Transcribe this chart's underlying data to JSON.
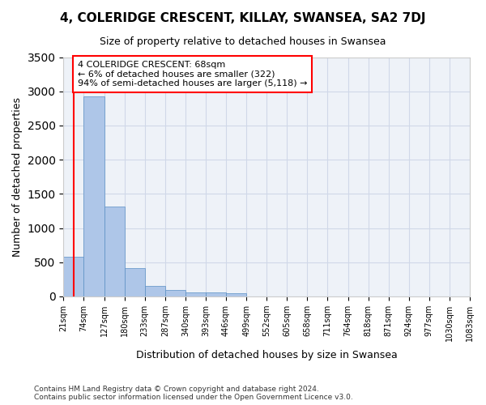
{
  "title": "4, COLERIDGE CRESCENT, KILLAY, SWANSEA, SA2 7DJ",
  "subtitle": "Size of property relative to detached houses in Swansea",
  "xlabel": "Distribution of detached houses by size in Swansea",
  "ylabel": "Number of detached properties",
  "bar_values": [
    580,
    2930,
    1320,
    410,
    155,
    90,
    60,
    55,
    45,
    0,
    0,
    0,
    0,
    0,
    0,
    0,
    0,
    0,
    0,
    0
  ],
  "bar_color": "#aec6e8",
  "bar_edge_color": "#5a8fc4",
  "grid_color": "#d0d8e8",
  "bg_color": "#eef2f8",
  "annotation_text": "4 COLERIDGE CRESCENT: 68sqm\n← 6% of detached houses are smaller (322)\n94% of semi-detached houses are larger (5,118) →",
  "annotation_box_color": "white",
  "annotation_box_edge": "red",
  "property_line_color": "red",
  "property_line_x": 0.5,
  "ylim": [
    0,
    3500
  ],
  "footer": "Contains HM Land Registry data © Crown copyright and database right 2024.\nContains public sector information licensed under the Open Government Licence v3.0.",
  "categories": [
    "21sqm",
    "74sqm",
    "127sqm",
    "180sqm",
    "233sqm",
    "287sqm",
    "340sqm",
    "393sqm",
    "446sqm",
    "499sqm",
    "552sqm",
    "605sqm",
    "658sqm",
    "711sqm",
    "764sqm",
    "818sqm",
    "871sqm",
    "924sqm",
    "977sqm",
    "1030sqm",
    "1083sqm"
  ]
}
